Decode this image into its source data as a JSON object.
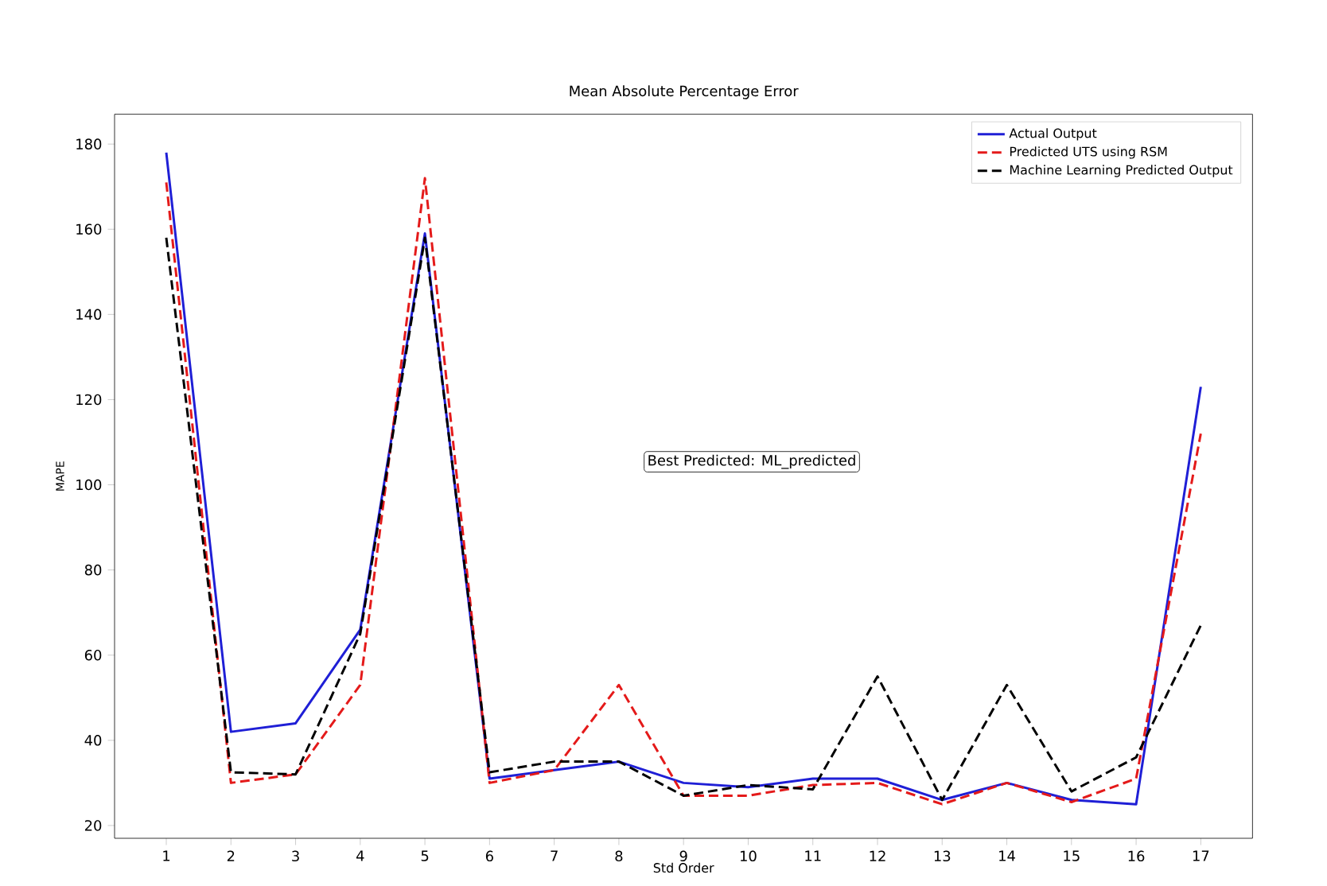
{
  "chart_data": {
    "type": "line",
    "title": "Mean Absolute Percentage Error",
    "xlabel": "Std Order",
    "ylabel": "MAPE",
    "x": [
      1,
      2,
      3,
      4,
      5,
      6,
      7,
      8,
      9,
      10,
      11,
      12,
      13,
      14,
      15,
      16,
      17
    ],
    "xlim": [
      0.2,
      17.8
    ],
    "xticks": [
      1,
      2,
      3,
      4,
      5,
      6,
      7,
      8,
      9,
      10,
      11,
      12,
      13,
      14,
      15,
      16,
      17
    ],
    "ylim": [
      17,
      187
    ],
    "yticks": [
      20,
      40,
      60,
      80,
      100,
      120,
      140,
      160,
      180
    ],
    "series": [
      {
        "name": "Actual Output",
        "color": "#1f1fd6",
        "line_style": "solid",
        "values": [
          178,
          42,
          44,
          66,
          159,
          31,
          33,
          35,
          30,
          29,
          31,
          31,
          26,
          30,
          26,
          25,
          123
        ]
      },
      {
        "name": "Predicted UTS using RSM",
        "color": "#e41a1a",
        "line_style": "dashed",
        "values": [
          171,
          30,
          32,
          53,
          172,
          30,
          33,
          53,
          27,
          27,
          29.5,
          30,
          25,
          30,
          25.5,
          31,
          112
        ]
      },
      {
        "name": "Machine Learning Predicted Output",
        "color": "#000000",
        "line_style": "dashed",
        "values": [
          158,
          32.5,
          32,
          65,
          158,
          32.5,
          35,
          35,
          27,
          29.5,
          28.5,
          55,
          26,
          53,
          28,
          36,
          67
        ]
      }
    ],
    "annotations": [
      "Best Predicted: ML_predicted"
    ],
    "legend": "top right",
    "grid": false
  }
}
